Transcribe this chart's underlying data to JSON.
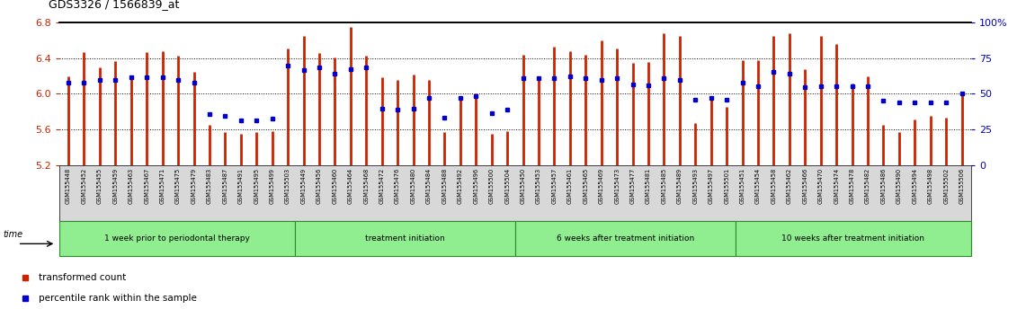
{
  "title": "GDS3326 / 1566839_at",
  "ylim": [
    5.2,
    6.8
  ],
  "yticks": [
    5.2,
    5.6,
    6.0,
    6.4,
    6.8
  ],
  "right_yticks": [
    0,
    25,
    50,
    75,
    100
  ],
  "right_ylabels": [
    "0",
    "25",
    "50",
    "75",
    "100%"
  ],
  "dotted_lines": [
    5.6,
    6.0,
    6.4
  ],
  "samples": [
    "GSM155448",
    "GSM155452",
    "GSM155455",
    "GSM155459",
    "GSM155463",
    "GSM155467",
    "GSM155471",
    "GSM155475",
    "GSM155479",
    "GSM155483",
    "GSM155487",
    "GSM155491",
    "GSM155495",
    "GSM155499",
    "GSM155503",
    "GSM155449",
    "GSM155456",
    "GSM155460",
    "GSM155464",
    "GSM155468",
    "GSM155472",
    "GSM155476",
    "GSM155480",
    "GSM155484",
    "GSM155488",
    "GSM155492",
    "GSM155496",
    "GSM155500",
    "GSM155504",
    "GSM155450",
    "GSM155453",
    "GSM155457",
    "GSM155461",
    "GSM155465",
    "GSM155469",
    "GSM155473",
    "GSM155477",
    "GSM155481",
    "GSM155485",
    "GSM155489",
    "GSM155493",
    "GSM155497",
    "GSM155501",
    "GSM155451",
    "GSM155454",
    "GSM155458",
    "GSM155462",
    "GSM155466",
    "GSM155470",
    "GSM155474",
    "GSM155478",
    "GSM155482",
    "GSM155486",
    "GSM155490",
    "GSM155494",
    "GSM155498",
    "GSM155502",
    "GSM155506"
  ],
  "bar_values": [
    6.2,
    6.47,
    6.3,
    6.37,
    6.19,
    6.47,
    6.48,
    6.43,
    6.25,
    5.65,
    5.57,
    5.55,
    5.57,
    5.58,
    6.51,
    6.65,
    6.46,
    6.41,
    6.75,
    6.43,
    6.19,
    6.15,
    6.22,
    6.15,
    5.57,
    5.95,
    6.0,
    5.55,
    5.58,
    6.44,
    6.2,
    6.53,
    6.48,
    6.44,
    6.6,
    6.51,
    6.35,
    6.36,
    6.68,
    6.65,
    5.67,
    5.95,
    5.85,
    6.38,
    6.38,
    6.65,
    6.68,
    6.28,
    6.65,
    6.56,
    6.11,
    6.2,
    5.65,
    5.57,
    5.71,
    5.75,
    5.73,
    6.0
  ],
  "percentile_values": [
    6.12,
    6.12,
    6.16,
    6.16,
    6.19,
    6.19,
    6.19,
    6.16,
    6.12,
    5.77,
    5.75,
    5.7,
    5.7,
    5.72,
    6.32,
    6.27,
    6.3,
    6.23,
    6.28,
    6.3,
    5.83,
    5.82,
    5.83,
    5.95,
    5.73,
    5.95,
    5.97,
    5.78,
    5.82,
    6.18,
    6.18,
    6.18,
    6.2,
    6.18,
    6.15,
    6.18,
    6.1,
    6.09,
    6.18,
    6.16,
    5.93,
    5.95,
    5.93,
    6.12,
    6.08,
    6.25,
    6.23,
    6.07,
    6.08,
    6.08,
    6.08,
    6.08,
    5.92,
    5.9,
    5.9,
    5.9,
    5.9,
    6.0
  ],
  "group_boundaries": [
    0,
    15,
    29,
    43,
    58
  ],
  "group_labels": [
    "1 week prior to periodontal therapy",
    "treatment initiation",
    "6 weeks after treatment initiation",
    "10 weeks after treatment initiation"
  ],
  "bar_color": "#cc2200",
  "percentile_color": "#0000cc",
  "bg_color": "#ffffff",
  "xlabel_color": "#cc2200",
  "right_axis_color": "#0000cc",
  "light_green": "#90ee90",
  "dark_green": "#2e8b2e"
}
